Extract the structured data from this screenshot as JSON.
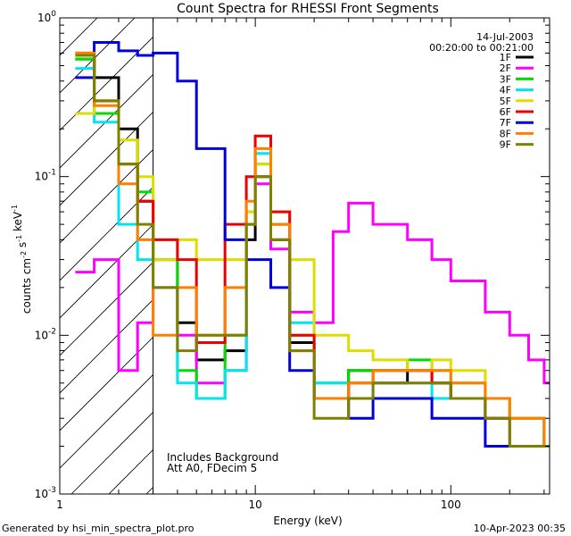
{
  "footer": {
    "left": "Generated by hsi_min_spectra_plot.pro",
    "right": "10-Apr-2023 00:35"
  },
  "chart_data": {
    "type": "line",
    "title": "Count Spectra for RHESSI Front Segments",
    "xlabel": "Energy (keV)",
    "ylabel": "counts cm^-2 s^-1 keV^-1",
    "xscale": "log",
    "yscale": "log",
    "xlim": [
      1,
      320
    ],
    "ylim": [
      0.001,
      1.0
    ],
    "x_ticks": [
      "1",
      "10",
      "100"
    ],
    "y_ticks": [
      "10^-3",
      "10^-2",
      "10^-1",
      "10^0"
    ],
    "header_lines": [
      "14-Jul-2003",
      "00:20:00 to 00:21:00"
    ],
    "annotations": [
      "Includes Background",
      "Att A0, FDecim 5"
    ],
    "hatched_region_below_keV": 3,
    "legend_position": "top-right",
    "series": [
      {
        "name": "1F",
        "color": "#000000",
        "x": [
          1.2,
          1.5,
          2,
          2.5,
          3,
          4,
          5,
          7,
          9,
          10,
          12,
          15,
          20,
          30,
          40,
          60,
          80,
          100,
          150,
          200,
          300
        ],
        "y": [
          0.55,
          0.42,
          0.2,
          0.07,
          0.03,
          0.012,
          0.007,
          0.008,
          0.04,
          0.1,
          0.04,
          0.009,
          0.004,
          0.006,
          0.005,
          0.006,
          0.005,
          0.004,
          0.003,
          0.003,
          0.002
        ]
      },
      {
        "name": "2F",
        "color": "#ff00ff",
        "x": [
          1.2,
          1.5,
          2,
          2.5,
          3,
          4,
          5,
          7,
          9,
          10,
          12,
          15,
          20,
          25,
          30,
          40,
          60,
          80,
          100,
          150,
          200,
          250,
          300
        ],
        "y": [
          0.025,
          0.03,
          0.006,
          0.012,
          0.02,
          0.01,
          0.005,
          0.006,
          0.05,
          0.09,
          0.035,
          0.014,
          0.012,
          0.045,
          0.068,
          0.05,
          0.04,
          0.03,
          0.022,
          0.014,
          0.01,
          0.007,
          0.005
        ]
      },
      {
        "name": "3F",
        "color": "#00dd00",
        "x": [
          1.2,
          1.5,
          2,
          2.5,
          3,
          4,
          5,
          7,
          9,
          10,
          12,
          15,
          20,
          30,
          40,
          60,
          80,
          100,
          150,
          200,
          300
        ],
        "y": [
          0.55,
          0.25,
          0.12,
          0.08,
          0.03,
          0.006,
          0.004,
          0.01,
          0.05,
          0.12,
          0.05,
          0.01,
          0.005,
          0.006,
          0.006,
          0.007,
          0.006,
          0.005,
          0.004,
          0.003,
          0.002
        ]
      },
      {
        "name": "4F",
        "color": "#00e5ee",
        "x": [
          1.2,
          1.5,
          2,
          2.5,
          3,
          4,
          5,
          7,
          9,
          10,
          12,
          15,
          20,
          30,
          40,
          60,
          80,
          100,
          150,
          200,
          300
        ],
        "y": [
          0.48,
          0.22,
          0.05,
          0.03,
          0.02,
          0.005,
          0.004,
          0.006,
          0.06,
          0.14,
          0.05,
          0.012,
          0.005,
          0.004,
          0.005,
          0.005,
          0.004,
          0.004,
          0.003,
          0.003,
          0.002
        ]
      },
      {
        "name": "5F",
        "color": "#dddd00",
        "x": [
          1.2,
          1.5,
          2,
          2.5,
          3,
          4,
          5,
          7,
          9,
          10,
          12,
          15,
          20,
          30,
          40,
          60,
          80,
          100,
          150,
          200,
          300
        ],
        "y": [
          0.25,
          0.3,
          0.17,
          0.1,
          0.03,
          0.04,
          0.03,
          0.03,
          0.06,
          0.12,
          0.06,
          0.03,
          0.01,
          0.008,
          0.007,
          0.006,
          0.007,
          0.006,
          0.004,
          0.003,
          0.002
        ]
      },
      {
        "name": "6F",
        "color": "#ee0000",
        "x": [
          1.2,
          1.5,
          2,
          2.5,
          3,
          4,
          5,
          7,
          9,
          10,
          12,
          15,
          20,
          30,
          40,
          60,
          80,
          100,
          150,
          200,
          300
        ],
        "y": [
          0.6,
          0.3,
          0.12,
          0.07,
          0.04,
          0.03,
          0.009,
          0.05,
          0.1,
          0.18,
          0.06,
          0.01,
          0.004,
          0.005,
          0.006,
          0.006,
          0.005,
          0.004,
          0.003,
          0.002,
          0.002
        ]
      },
      {
        "name": "7F",
        "color": "#0000dd",
        "x": [
          1.2,
          1.5,
          2,
          2.5,
          3,
          4,
          5,
          7,
          9,
          10,
          12,
          15,
          20,
          30,
          40,
          60,
          80,
          100,
          150,
          200,
          300
        ],
        "y": [
          0.42,
          0.7,
          0.62,
          0.58,
          0.6,
          0.4,
          0.15,
          0.04,
          0.03,
          0.03,
          0.02,
          0.006,
          0.004,
          0.003,
          0.004,
          0.004,
          0.003,
          0.003,
          0.002,
          0.002,
          0.002
        ]
      },
      {
        "name": "8F",
        "color": "#ff7f00",
        "x": [
          1.2,
          1.5,
          2,
          2.5,
          3,
          4,
          5,
          7,
          9,
          10,
          12,
          15,
          20,
          30,
          40,
          60,
          80,
          100,
          150,
          200,
          300
        ],
        "y": [
          0.6,
          0.28,
          0.09,
          0.04,
          0.01,
          0.02,
          0.01,
          0.02,
          0.07,
          0.15,
          0.05,
          0.008,
          0.004,
          0.005,
          0.006,
          0.006,
          0.006,
          0.005,
          0.004,
          0.003,
          0.002
        ]
      },
      {
        "name": "9F",
        "color": "#808000",
        "x": [
          1.2,
          1.5,
          2,
          2.5,
          3,
          4,
          5,
          7,
          9,
          10,
          12,
          15,
          20,
          30,
          40,
          60,
          80,
          100,
          150,
          200,
          300
        ],
        "y": [
          0.58,
          0.3,
          0.12,
          0.05,
          0.02,
          0.008,
          0.01,
          0.01,
          0.05,
          0.1,
          0.04,
          0.008,
          0.003,
          0.004,
          0.005,
          0.005,
          0.005,
          0.004,
          0.003,
          0.002,
          0.002
        ]
      }
    ]
  }
}
